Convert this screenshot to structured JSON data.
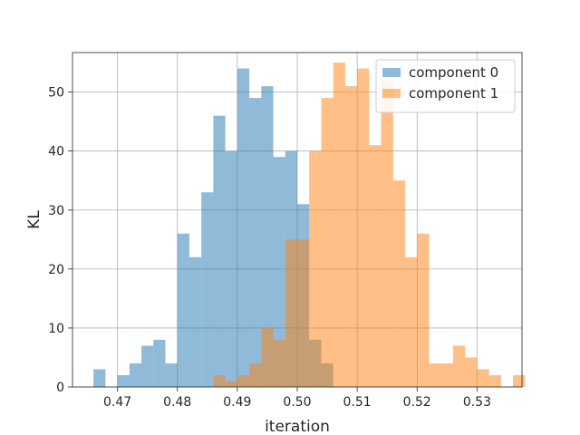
{
  "chart_data": {
    "type": "histogram",
    "title": "",
    "xlabel": "iteration",
    "ylabel": "KL",
    "xlim": [
      0.4625,
      0.5375
    ],
    "ylim": [
      0,
      56.7
    ],
    "xticks": [
      0.47,
      0.48,
      0.49,
      0.5,
      0.51,
      0.52,
      0.53
    ],
    "xtick_labels": [
      "0.47",
      "0.48",
      "0.49",
      "0.50",
      "0.51",
      "0.52",
      "0.53"
    ],
    "yticks": [
      0,
      10,
      20,
      30,
      40,
      50
    ],
    "ytick_labels": [
      "0",
      "10",
      "20",
      "30",
      "40",
      "50"
    ],
    "grid": true,
    "legend_position": "top-right",
    "bin_width": 0.002,
    "series": [
      {
        "name": "component 0",
        "color": "#1f77b4",
        "alpha": 0.5,
        "bin_start": 0.466,
        "counts": [
          3,
          0,
          2,
          4,
          7,
          8,
          4,
          26,
          22,
          33,
          46,
          40,
          54,
          49,
          51,
          39,
          40,
          31,
          8,
          4
        ]
      },
      {
        "name": "component 1",
        "color": "#ff7f0e",
        "alpha": 0.5,
        "bin_start": 0.486,
        "counts": [
          2,
          1,
          2,
          4,
          10,
          8,
          25,
          25,
          40,
          49,
          55,
          51,
          54,
          41,
          52,
          35,
          22,
          26,
          4,
          4,
          7,
          5,
          3,
          2,
          0,
          2
        ]
      }
    ]
  }
}
